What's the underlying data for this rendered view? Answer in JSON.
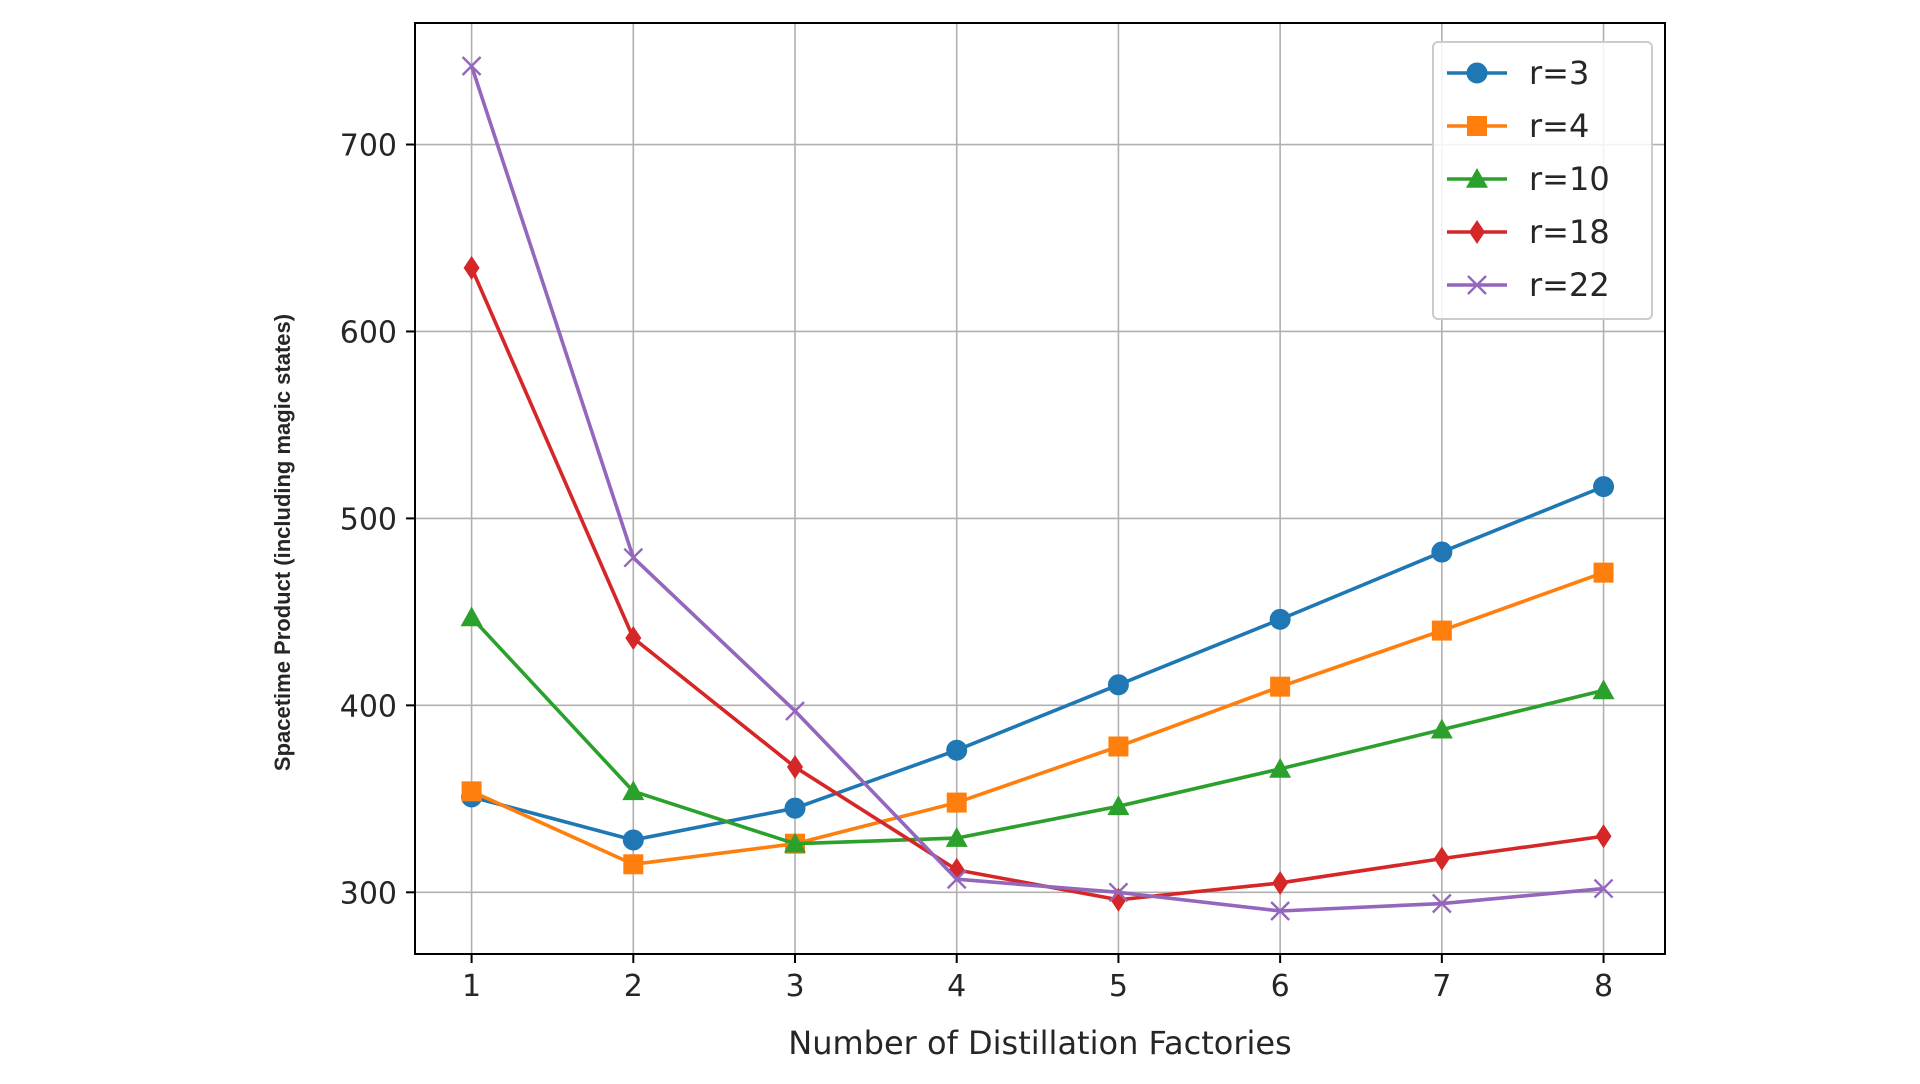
{
  "chart_data": {
    "type": "line",
    "title": "",
    "xlabel": "Number of Distillation Factories",
    "ylabel": "Spacetime Product (including magic states)",
    "x": [
      1,
      2,
      3,
      4,
      5,
      6,
      7,
      8
    ],
    "xticks": [
      "1",
      "2",
      "3",
      "4",
      "5",
      "6",
      "7",
      "8"
    ],
    "xlim": [
      0.65,
      8.38
    ],
    "yticks": [
      300,
      400,
      500,
      600,
      700
    ],
    "ylim": [
      267,
      765
    ],
    "grid": true,
    "legend_position": "top-right",
    "series": [
      {
        "name": "r=3",
        "color": "#1f77b4",
        "marker": "circle",
        "values": [
          351,
          328,
          345,
          376,
          411,
          446,
          482,
          517
        ]
      },
      {
        "name": "r=4",
        "color": "#ff7f0e",
        "marker": "square",
        "values": [
          354,
          315,
          326,
          348,
          378,
          410,
          440,
          471
        ]
      },
      {
        "name": "r=10",
        "color": "#2ca02c",
        "marker": "triangle",
        "values": [
          447,
          354,
          326,
          329,
          346,
          366,
          387,
          408
        ]
      },
      {
        "name": "r=18",
        "color": "#d62728",
        "marker": "diamond",
        "values": [
          634,
          436,
          367,
          312,
          296,
          305,
          318,
          330
        ]
      },
      {
        "name": "r=22",
        "color": "#9467bd",
        "marker": "x",
        "values": [
          742,
          479,
          397,
          307,
          300,
          290,
          294,
          302
        ]
      }
    ]
  }
}
